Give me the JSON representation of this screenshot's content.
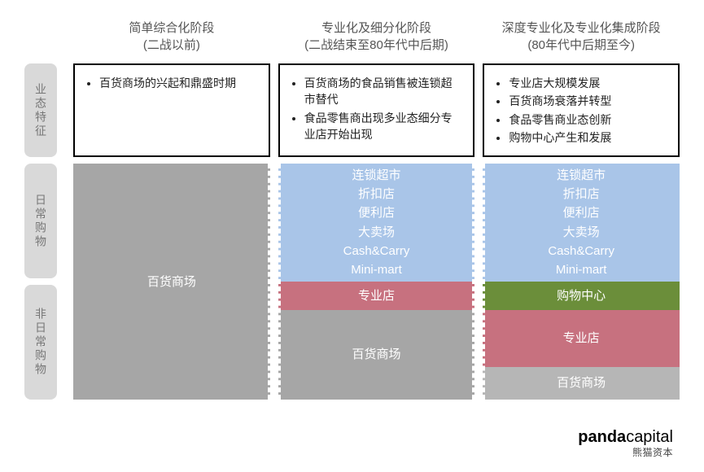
{
  "columns": [
    {
      "title_l1": "简单综合化阶段",
      "title_l2": "(二战以前)"
    },
    {
      "title_l1": "专业化及细分化阶段",
      "title_l2": "(二战结束至80年代中后期)"
    },
    {
      "title_l1": "深度专业化及专业化集成阶段",
      "title_l2": "(80年代中后期至今)"
    }
  ],
  "row_labels": {
    "features": "业态特征",
    "daily": "日常购物",
    "nondaily": "非日常购物"
  },
  "features": {
    "col1": [
      "百货商场的兴起和鼎盛时期"
    ],
    "col2": [
      "百货商场的食品销售被连锁超市替代",
      "食品零售商出现多业态细分专业店开始出现"
    ],
    "col3": [
      "专业店大规模发展",
      "百货商场衰落并转型",
      "食品零售商业态创新",
      "购物中心产生和发展"
    ]
  },
  "chart": {
    "colors": {
      "grey": "#a6a6a6",
      "blue": "#a9c5e8",
      "pink": "#c7717f",
      "green": "#6b8e3a",
      "light_grey": "#b6b6b6"
    },
    "col1": {
      "blocks": [
        {
          "color": "grey",
          "height_pct": 100,
          "lines": [
            "百货商场"
          ]
        }
      ]
    },
    "col2": {
      "blocks": [
        {
          "color": "blue",
          "height_pct": 50,
          "lines": [
            "连锁超市",
            "折扣店",
            "便利店",
            "大卖场",
            "Cash&Carry",
            "Mini-mart"
          ]
        },
        {
          "color": "pink",
          "height_pct": 12,
          "lines": [
            "专业店"
          ]
        },
        {
          "color": "grey",
          "height_pct": 38,
          "lines": [
            "百货商场"
          ]
        }
      ]
    },
    "col3": {
      "blocks": [
        {
          "color": "blue",
          "height_pct": 50,
          "lines": [
            "连锁超市",
            "折扣店",
            "便利店",
            "大卖场",
            "Cash&Carry",
            "Mini-mart"
          ]
        },
        {
          "color": "green",
          "height_pct": 12,
          "lines": [
            "购物中心"
          ]
        },
        {
          "color": "pink",
          "height_pct": 24,
          "lines": [
            "专业店"
          ]
        },
        {
          "color": "light_grey",
          "height_pct": 14,
          "lines": [
            "百货商场"
          ]
        }
      ]
    },
    "row_split_pct": 50
  },
  "logo": {
    "brand": "pandacapital",
    "cn": "熊猫资本"
  }
}
